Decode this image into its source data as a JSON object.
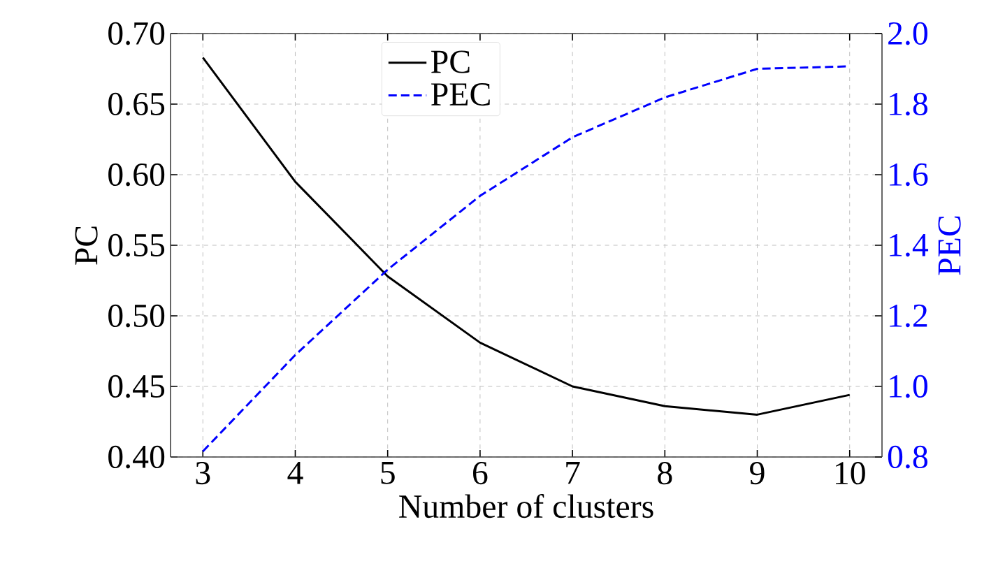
{
  "chart_data": {
    "type": "line",
    "xlabel": "Number of clusters",
    "ylabel": "PC",
    "y2label": "PEC",
    "x": [
      3,
      4,
      5,
      6,
      7,
      8,
      9,
      10
    ],
    "series": [
      {
        "name": "PC",
        "color": "#000000",
        "line_style": "solid",
        "values": [
          0.683,
          0.595,
          0.528,
          0.481,
          0.45,
          0.436,
          0.43,
          0.444
        ]
      },
      {
        "name": "PEC",
        "color": "#0000ff",
        "line_style": "dashed",
        "axis": "y2",
        "values": [
          0.816,
          1.089,
          1.331,
          1.54,
          1.706,
          1.819,
          1.9,
          1.907
        ]
      }
    ],
    "xlim": [
      2.65,
      10.35
    ],
    "xticks": [
      3,
      4,
      5,
      6,
      7,
      8,
      9,
      10
    ],
    "ylim": [
      0.4,
      0.7
    ],
    "yticks": [
      {
        "value": 0.4,
        "label": "0.40"
      },
      {
        "value": 0.45,
        "label": "0.45"
      },
      {
        "value": 0.5,
        "label": "0.50"
      },
      {
        "value": 0.55,
        "label": "0.55"
      },
      {
        "value": 0.6,
        "label": "0.60"
      },
      {
        "value": 0.65,
        "label": "0.65"
      },
      {
        "value": 0.7,
        "label": "0.70"
      }
    ],
    "y2lim": [
      0.8,
      2.0
    ],
    "y2ticks": [
      {
        "value": 0.8,
        "label": "0.8"
      },
      {
        "value": 1.0,
        "label": "1.0"
      },
      {
        "value": 1.2,
        "label": "1.2"
      },
      {
        "value": 1.4,
        "label": "1.4"
      },
      {
        "value": 1.6,
        "label": "1.6"
      },
      {
        "value": 1.8,
        "label": "1.8"
      },
      {
        "value": 2.0,
        "label": "2.0"
      }
    ],
    "grid": true,
    "legend": "top",
    "marker": "none"
  }
}
